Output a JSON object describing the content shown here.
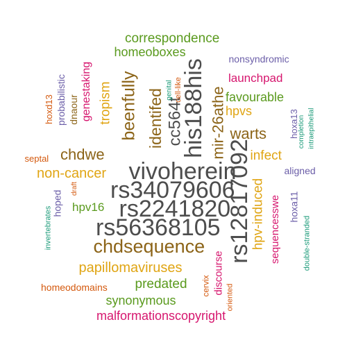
{
  "colors": {
    "gray": "#4d4d4d",
    "brown": "#8c6418",
    "green": "#5a9a1e",
    "magenta": "#d6166e",
    "gold": "#e0a514",
    "orange": "#d4590e",
    "purple": "#6b5ea8",
    "teal": "#1a9a78"
  },
  "words": [
    {
      "text": "vivoherein",
      "color": "gray",
      "rot": 0
    },
    {
      "text": "rs34079606",
      "color": "gray",
      "rot": 0
    },
    {
      "text": "rs2241820",
      "color": "gray",
      "rot": 0
    },
    {
      "text": "rs56368105",
      "color": "gray",
      "rot": 0
    },
    {
      "text": "rs12817092",
      "color": "gray",
      "rot": -90
    },
    {
      "text": "his188his",
      "color": "gray",
      "rot": -90
    },
    {
      "text": "cc564t",
      "color": "gray",
      "rot": -90
    },
    {
      "text": "chdsequence",
      "color": "brown",
      "rot": 0
    },
    {
      "text": "beenfully",
      "color": "brown",
      "rot": -90
    },
    {
      "text": "identifed",
      "color": "brown",
      "rot": -90
    },
    {
      "text": "mir-26athe",
      "color": "brown",
      "rot": -90
    },
    {
      "text": "warts",
      "color": "brown",
      "rot": 0
    },
    {
      "text": "chdwe",
      "color": "brown",
      "rot": 0
    },
    {
      "text": "hpv-induced",
      "color": "gold",
      "rot": -90
    },
    {
      "text": "papillomaviruses",
      "color": "gold",
      "rot": 0
    },
    {
      "text": "non-cancer",
      "color": "gold",
      "rot": 0
    },
    {
      "text": "tropism",
      "color": "gold",
      "rot": -90
    },
    {
      "text": "infect",
      "color": "gold",
      "rot": 0
    },
    {
      "text": "hpvs",
      "color": "gold",
      "rot": 0
    },
    {
      "text": "correspondence",
      "color": "green",
      "rot": 0
    },
    {
      "text": "homeoboxes",
      "color": "green",
      "rot": 0
    },
    {
      "text": "favourable",
      "color": "green",
      "rot": 0
    },
    {
      "text": "predated",
      "color": "green",
      "rot": 0
    },
    {
      "text": "synonymous",
      "color": "green",
      "rot": 0
    },
    {
      "text": "hpv16",
      "color": "green",
      "rot": 0
    },
    {
      "text": "malformationscopyright",
      "color": "magenta",
      "rot": 0
    },
    {
      "text": "launchpad",
      "color": "magenta",
      "rot": 0
    },
    {
      "text": "genestaking",
      "color": "magenta",
      "rot": -90
    },
    {
      "text": "sequencesswe",
      "color": "magenta",
      "rot": -90
    },
    {
      "text": "discourse",
      "color": "magenta",
      "rot": -90
    },
    {
      "text": "nonsyndromic",
      "color": "purple",
      "rot": 0
    },
    {
      "text": "probabilistic",
      "color": "purple",
      "rot": -90
    },
    {
      "text": "aligned",
      "color": "purple",
      "rot": 0
    },
    {
      "text": "hoxa13",
      "color": "purple",
      "rot": -90
    },
    {
      "text": "hoxa11",
      "color": "purple",
      "rot": -90
    },
    {
      "text": "hoped",
      "color": "purple",
      "rot": -90
    },
    {
      "text": "dnaour",
      "color": "brown",
      "rot": -90
    },
    {
      "text": "homeodomains",
      "color": "orange",
      "rot": 0
    },
    {
      "text": "septal",
      "color": "orange",
      "rot": 0
    },
    {
      "text": "hoxd13",
      "color": "orange",
      "rot": -90
    },
    {
      "text": "cervix",
      "color": "orange",
      "rot": -90
    },
    {
      "text": "oriented",
      "color": "orange",
      "rot": -90
    },
    {
      "text": "cell-like",
      "color": "orange",
      "rot": -90
    },
    {
      "text": "draft",
      "color": "orange",
      "rot": -90
    },
    {
      "text": "genital",
      "color": "teal",
      "rot": -90
    },
    {
      "text": "completion",
      "color": "teal",
      "rot": -90
    },
    {
      "text": "intraepithelial",
      "color": "teal",
      "rot": -90
    },
    {
      "text": "invertebrates",
      "color": "teal",
      "rot": -90
    },
    {
      "text": "double-stranded",
      "color": "teal",
      "rot": -90
    }
  ]
}
